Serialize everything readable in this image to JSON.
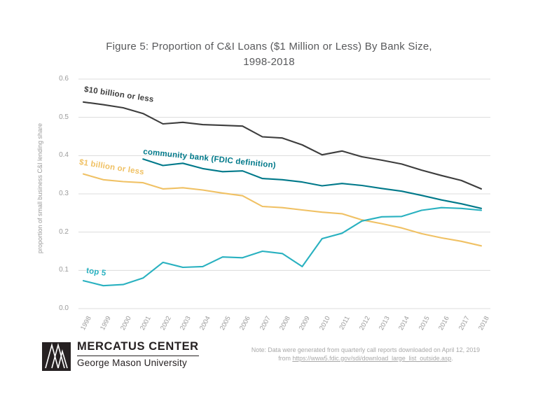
{
  "title": {
    "line1": "Figure 5: Proportion of C&I Loans ($1 Million or Less) By Bank Size,",
    "line2": "1998-2018"
  },
  "note": {
    "line1": "Note: Data were generated from quarterly call reports downloaded on April 12, 2019",
    "line2_prefix": "from ",
    "link_text": "https://www5.fdic.gov/sdi/download_large_list_outside.asp",
    "line2_suffix": "."
  },
  "logo": {
    "title": "MERCATUS CENTER",
    "subtitle": "George Mason University"
  },
  "colors": {
    "dark_series": "#3d3d3d",
    "gold_series": "#f0c164",
    "community_series": "#00798a",
    "top5_series": "#29b1c0",
    "gridline": "#dcdcdc",
    "tick_text": "#9b9b9b"
  },
  "chart_data": {
    "type": "line",
    "title": "Figure 5: Proportion of C&I Loans ($1 Million or Less) By Bank Size, 1998-2018",
    "xlabel": "",
    "ylabel": "proportion of small business C&I lending share",
    "ylim": [
      0,
      0.6
    ],
    "y_ticks": [
      "0.0",
      "0.1",
      "0.2",
      "0.3",
      "0.4",
      "0.5",
      "0.6"
    ],
    "x_labels": [
      "1998",
      "1999",
      "2000",
      "2001",
      "2002",
      "2003",
      "2004",
      "2005",
      "2006",
      "2007",
      "2008",
      "2009",
      "2010",
      "2011",
      "2012",
      "2013",
      "2014",
      "2015",
      "2016",
      "2017",
      "2018"
    ],
    "grid": "horizontal",
    "legend_position": "inline-labels",
    "series": [
      {
        "name": "$10 billion or less",
        "color": "#3d3d3d",
        "start_year": 1998,
        "values": [
          0.54,
          0.533,
          0.525,
          0.51,
          0.483,
          0.487,
          0.481,
          0.479,
          0.477,
          0.449,
          0.446,
          0.428,
          0.402,
          0.412,
          0.397,
          0.388,
          0.378,
          0.362,
          0.348,
          0.335,
          0.313
        ]
      },
      {
        "name": "$1 billion or less",
        "color": "#f0c164",
        "start_year": 1998,
        "values": [
          0.352,
          0.337,
          0.332,
          0.329,
          0.313,
          0.316,
          0.31,
          0.302,
          0.295,
          0.267,
          0.264,
          0.258,
          0.252,
          0.248,
          0.232,
          0.222,
          0.211,
          0.196,
          0.185,
          0.176,
          0.164
        ]
      },
      {
        "name": "community bank (FDIC definition)",
        "color": "#00798a",
        "start_year": 2001,
        "values": [
          0.391,
          0.374,
          0.38,
          0.366,
          0.358,
          0.36,
          0.34,
          0.337,
          0.331,
          0.321,
          0.327,
          0.322,
          0.314,
          0.307,
          0.296,
          0.284,
          0.274,
          0.262
        ]
      },
      {
        "name": "top 5",
        "color": "#29b1c0",
        "start_year": 1998,
        "values": [
          0.073,
          0.06,
          0.063,
          0.08,
          0.121,
          0.108,
          0.11,
          0.135,
          0.133,
          0.15,
          0.144,
          0.11,
          0.183,
          0.197,
          0.229,
          0.24,
          0.241,
          0.257,
          0.264,
          0.262,
          0.257
        ]
      }
    ]
  }
}
